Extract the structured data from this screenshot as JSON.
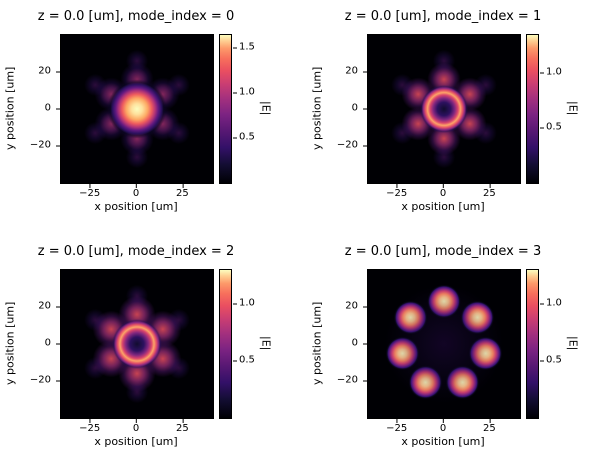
{
  "palette": {
    "magma_stops": [
      [
        "#000004",
        0
      ],
      [
        "#120d31",
        12
      ],
      [
        "#331068",
        24
      ],
      [
        "#571873",
        35
      ],
      [
        "#7b2382",
        46
      ],
      [
        "#a3307e",
        57
      ],
      [
        "#ca3e72",
        67
      ],
      [
        "#ea4f60",
        76
      ],
      [
        "#f76f5c",
        84
      ],
      [
        "#fd9a6a",
        91
      ],
      [
        "#fecf92",
        96
      ],
      [
        "#fcfdbf",
        100
      ]
    ]
  },
  "lobe_styles": {
    "core": [
      [
        "#fcfdbf",
        0
      ],
      [
        "#fee19d",
        18
      ],
      [
        "#fda964",
        36
      ],
      [
        "#ee5b5e",
        50
      ],
      [
        "#ad3278",
        62
      ],
      [
        "#611980",
        72
      ],
      [
        "#2d1160",
        82
      ],
      [
        "rgba(10,7,35,0.55)",
        90
      ],
      [
        "rgba(0,0,4,0)",
        100
      ]
    ],
    "ring": [
      [
        "rgba(18,13,49,0.95)",
        0
      ],
      [
        "#2d1160",
        28
      ],
      [
        "#81277f",
        45
      ],
      [
        "#d9446c",
        58
      ],
      [
        "#fda567",
        68
      ],
      [
        "#e14d67",
        78
      ],
      [
        "#8c2981",
        86
      ],
      [
        "rgba(45,17,96,0.5)",
        93
      ],
      [
        "rgba(0,0,4,0)",
        100
      ]
    ],
    "petal": [
      [
        "rgba(173,50,120,0.75)",
        0
      ],
      [
        "rgba(123,35,130,0.55)",
        40
      ],
      [
        "rgba(51,16,104,0.35)",
        68
      ],
      [
        "rgba(0,0,4,0)",
        100
      ]
    ],
    "petal2": [
      [
        "rgba(234,79,96,0.85)",
        0
      ],
      [
        "rgba(163,48,126,0.7)",
        40
      ],
      [
        "rgba(87,24,115,0.45)",
        70
      ],
      [
        "rgba(0,0,4,0)",
        100
      ]
    ],
    "dot": [
      [
        "#fcf6b8",
        0
      ],
      [
        "#feca8d",
        25
      ],
      [
        "#fb8861",
        45
      ],
      [
        "#cf4070",
        62
      ],
      [
        "#7b2382",
        76
      ],
      [
        "#3b1277",
        86
      ],
      [
        "rgba(18,13,49,0.5)",
        93
      ],
      [
        "rgba(0,0,4,0)",
        100
      ]
    ],
    "satellite": [
      [
        "rgba(87,24,115,0.5)",
        0
      ],
      [
        "rgba(45,16,96,0.35)",
        50
      ],
      [
        "rgba(0,0,4,0)",
        100
      ]
    ],
    "halo": [
      [
        "rgba(59,16,112,0.30)",
        0
      ],
      [
        "rgba(30,12,70,0.22)",
        55
      ],
      [
        "rgba(0,0,4,0)",
        100
      ]
    ]
  },
  "chart_data": [
    {
      "type": "heatmap",
      "title": "z = 0.0 [um], mode_index = 0",
      "xlabel": "x position [um]",
      "ylabel": "y position [um]",
      "colorbar_label": "|E|",
      "cmap": "magma",
      "xlim": [
        -41,
        41
      ],
      "ylim": [
        -40,
        40
      ],
      "xticks": [
        -25,
        0,
        25
      ],
      "xtick_labels": [
        "−25",
        "0",
        "25"
      ],
      "yticks": [
        20,
        0,
        -20
      ],
      "ytick_labels": [
        "20",
        "0",
        "−20"
      ],
      "clim": [
        0,
        1.65
      ],
      "cticks": [
        0.5,
        1.0,
        1.5
      ],
      "ctick_labels": [
        "0.5",
        "1.0",
        "1.5"
      ],
      "lobes": [
        {
          "kind": "core",
          "x": 0,
          "y": 0,
          "r": 16
        },
        {
          "kind": "petal",
          "x": 0,
          "y": 16,
          "r": 9
        },
        {
          "kind": "petal",
          "x": -13.9,
          "y": 8,
          "r": 9
        },
        {
          "kind": "petal",
          "x": -13.9,
          "y": -8,
          "r": 9
        },
        {
          "kind": "petal",
          "x": 0,
          "y": -16,
          "r": 9
        },
        {
          "kind": "petal",
          "x": 13.9,
          "y": -8,
          "r": 9
        },
        {
          "kind": "petal",
          "x": 13.9,
          "y": 8,
          "r": 9
        },
        {
          "kind": "satellite",
          "x": 0,
          "y": 26,
          "r": 6
        },
        {
          "kind": "satellite",
          "x": -22.5,
          "y": 13,
          "r": 6
        },
        {
          "kind": "satellite",
          "x": -22.5,
          "y": -13,
          "r": 6
        },
        {
          "kind": "satellite",
          "x": 0,
          "y": -26,
          "r": 6
        },
        {
          "kind": "satellite",
          "x": 22.5,
          "y": -13,
          "r": 6
        },
        {
          "kind": "satellite",
          "x": 22.5,
          "y": 13,
          "r": 6
        }
      ]
    },
    {
      "type": "heatmap",
      "title": "z = 0.0 [um], mode_index = 1",
      "xlabel": "x position [um]",
      "ylabel": "y position [um]",
      "colorbar_label": "|E|",
      "cmap": "magma",
      "xlim": [
        -41,
        41
      ],
      "ylim": [
        -40,
        40
      ],
      "xticks": [
        -25,
        0,
        25
      ],
      "xtick_labels": [
        "−25",
        "0",
        "25"
      ],
      "yticks": [
        20,
        0,
        -20
      ],
      "ytick_labels": [
        "20",
        "0",
        "−20"
      ],
      "clim": [
        0,
        1.35
      ],
      "cticks": [
        0.5,
        1.0
      ],
      "ctick_labels": [
        "0.5",
        "1.0"
      ],
      "lobes": [
        {
          "kind": "ring",
          "x": 0,
          "y": 0,
          "r": 13
        },
        {
          "kind": "petal2",
          "x": 0,
          "y": 16,
          "r": 9
        },
        {
          "kind": "petal2",
          "x": -13.9,
          "y": 8,
          "r": 9
        },
        {
          "kind": "petal2",
          "x": -13.9,
          "y": -8,
          "r": 9
        },
        {
          "kind": "petal2",
          "x": 0,
          "y": -16,
          "r": 9
        },
        {
          "kind": "petal2",
          "x": 13.9,
          "y": -8,
          "r": 9
        },
        {
          "kind": "petal2",
          "x": 13.9,
          "y": 8,
          "r": 9
        },
        {
          "kind": "satellite",
          "x": 0,
          "y": 26,
          "r": 6
        },
        {
          "kind": "satellite",
          "x": -22.5,
          "y": 13,
          "r": 6
        },
        {
          "kind": "satellite",
          "x": -22.5,
          "y": -13,
          "r": 6
        },
        {
          "kind": "satellite",
          "x": 0,
          "y": -26,
          "r": 6
        },
        {
          "kind": "satellite",
          "x": 22.5,
          "y": -13,
          "r": 6
        },
        {
          "kind": "satellite",
          "x": 22.5,
          "y": 13,
          "r": 6
        }
      ]
    },
    {
      "type": "heatmap",
      "title": "z = 0.0 [um], mode_index = 2",
      "xlabel": "x position [um]",
      "ylabel": "y position [um]",
      "colorbar_label": "|E|",
      "cmap": "magma",
      "xlim": [
        -41,
        41
      ],
      "ylim": [
        -40,
        40
      ],
      "xticks": [
        -25,
        0,
        25
      ],
      "xtick_labels": [
        "−25",
        "0",
        "25"
      ],
      "yticks": [
        20,
        0,
        -20
      ],
      "ytick_labels": [
        "20",
        "0",
        "−20"
      ],
      "clim": [
        0,
        1.3
      ],
      "cticks": [
        0.5,
        1.0
      ],
      "ctick_labels": [
        "0.5",
        "1.0"
      ],
      "lobes": [
        {
          "kind": "ring",
          "x": 0,
          "y": 0,
          "r": 13.5
        },
        {
          "kind": "petal2",
          "x": 0,
          "y": 16,
          "r": 10
        },
        {
          "kind": "petal2",
          "x": -13.9,
          "y": 8,
          "r": 10
        },
        {
          "kind": "petal2",
          "x": -13.9,
          "y": -8,
          "r": 10
        },
        {
          "kind": "petal2",
          "x": 0,
          "y": -16,
          "r": 10
        },
        {
          "kind": "petal2",
          "x": 13.9,
          "y": -8,
          "r": 10
        },
        {
          "kind": "petal2",
          "x": 13.9,
          "y": 8,
          "r": 10
        },
        {
          "kind": "satellite",
          "x": 0,
          "y": 26,
          "r": 6
        },
        {
          "kind": "satellite",
          "x": -22.5,
          "y": 13,
          "r": 6
        },
        {
          "kind": "satellite",
          "x": -22.5,
          "y": -13,
          "r": 6
        },
        {
          "kind": "satellite",
          "x": 0,
          "y": -26,
          "r": 6
        },
        {
          "kind": "satellite",
          "x": 22.5,
          "y": -13,
          "r": 6
        },
        {
          "kind": "satellite",
          "x": 22.5,
          "y": 13,
          "r": 6
        }
      ]
    },
    {
      "type": "heatmap",
      "title": "z = 0.0 [um], mode_index = 3",
      "xlabel": "x position [um]",
      "ylabel": "y position [um]",
      "colorbar_label": "|E|",
      "cmap": "magma",
      "xlim": [
        -41,
        41
      ],
      "ylim": [
        -40,
        40
      ],
      "xticks": [
        -25,
        0,
        25
      ],
      "xtick_labels": [
        "−25",
        "0",
        "25"
      ],
      "yticks": [
        20,
        0,
        -20
      ],
      "ytick_labels": [
        "20",
        "0",
        "−20"
      ],
      "clim": [
        0,
        1.3
      ],
      "cticks": [
        0.5,
        1.0
      ],
      "ctick_labels": [
        "0.5",
        "1.0"
      ],
      "lobes": [
        {
          "kind": "halo",
          "x": 0,
          "y": 0,
          "r": 32
        },
        {
          "kind": "dot",
          "x": 0,
          "y": 23,
          "r": 9
        },
        {
          "kind": "dot",
          "x": -18,
          "y": 14.3,
          "r": 9
        },
        {
          "kind": "dot",
          "x": -22.4,
          "y": -5.1,
          "r": 9
        },
        {
          "kind": "dot",
          "x": -10,
          "y": -20.7,
          "r": 9
        },
        {
          "kind": "dot",
          "x": 10,
          "y": -20.7,
          "r": 9
        },
        {
          "kind": "dot",
          "x": 22.4,
          "y": -5.1,
          "r": 9
        },
        {
          "kind": "dot",
          "x": 18,
          "y": 14.3,
          "r": 9
        }
      ]
    }
  ]
}
